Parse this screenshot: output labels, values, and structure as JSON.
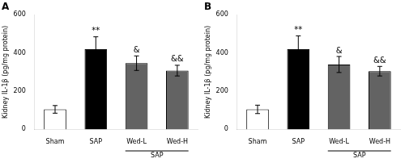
{
  "chart_data": [
    {
      "type": "bar",
      "title": "A",
      "categories": [
        "Sham",
        "SAP",
        "Wed-L",
        "Wed-H"
      ],
      "values": [
        105,
        420,
        347,
        308
      ],
      "errors": [
        20,
        65,
        38,
        28
      ],
      "colors": [
        "#ffffff",
        "#000000",
        "#636363",
        "#636363"
      ],
      "edge_color": "#000000",
      "ylabel": "Kidney IL-1β (pg/mg protein)",
      "ylim": [
        0,
        600
      ],
      "yticks": [
        0,
        200,
        400,
        600
      ],
      "grid": false,
      "annotations": [
        {
          "category": "SAP",
          "text": "**"
        },
        {
          "category": "Wed-L",
          "text": "&"
        },
        {
          "category": "Wed-H",
          "text": "&&"
        }
      ],
      "groups": [
        {
          "label": "SAP",
          "members": [
            "Wed-L",
            "Wed-H"
          ]
        }
      ]
    },
    {
      "type": "bar",
      "title": "B",
      "categories": [
        "Sham",
        "SAP",
        "Wed-L",
        "Wed-H"
      ],
      "values": [
        105,
        420,
        340,
        305
      ],
      "errors": [
        22,
        70,
        42,
        25
      ],
      "colors": [
        "#ffffff",
        "#000000",
        "#636363",
        "#636363"
      ],
      "edge_color": "#000000",
      "ylabel": "Kidney IL-1β (pg/mg protein)",
      "ylim": [
        0,
        600
      ],
      "yticks": [
        0,
        200,
        400,
        600
      ],
      "grid": false,
      "annotations": [
        {
          "category": "SAP",
          "text": "**"
        },
        {
          "category": "Wed-L",
          "text": "&"
        },
        {
          "category": "Wed-H",
          "text": "&&"
        }
      ],
      "groups": [
        {
          "label": "SAP",
          "members": [
            "Wed-L",
            "Wed-H"
          ]
        }
      ]
    }
  ]
}
